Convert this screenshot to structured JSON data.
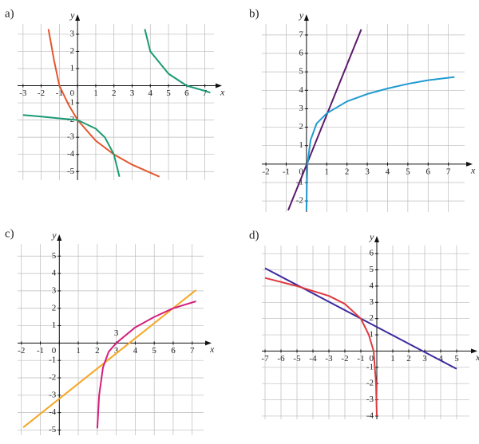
{
  "chart_data": [
    {
      "type": "line",
      "title": "a)",
      "x_label": "x",
      "y_label": "y",
      "xlim": [
        -3.3,
        7.5
      ],
      "ylim": [
        -5.5,
        3.6
      ],
      "xticks": [
        -3,
        -2,
        -1,
        0,
        1,
        2,
        3,
        4,
        5,
        6,
        7
      ],
      "yticks": [
        -5,
        -4,
        -3,
        -2,
        -1,
        1,
        2,
        3
      ],
      "series": [
        {
          "color": "#e4572e",
          "x": [
            -1.6,
            -1.3,
            -1,
            -0.5,
            0,
            1,
            2,
            3,
            4.5
          ],
          "values": [
            3.3,
            1.5,
            0,
            -1.1,
            -2,
            -3.2,
            -4,
            -4.6,
            -5.3
          ]
        },
        {
          "color": "#1a9a74",
          "x": [
            -3,
            -2,
            -1,
            0,
            1,
            1.5,
            2,
            2.3,
            null,
            3.7,
            4,
            5,
            6,
            7,
            7.3
          ],
          "values": [
            -1.7,
            -1.8,
            -1.9,
            -2,
            -2.5,
            -3,
            -4,
            -5.3,
            null,
            3.3,
            2,
            0.7,
            0,
            -0.3,
            -0.4
          ]
        }
      ]
    },
    {
      "type": "line",
      "title": "b)",
      "x_label": "x",
      "y_label": "y",
      "xlim": [
        -2.2,
        7.8
      ],
      "ylim": [
        -2.6,
        7.6
      ],
      "xticks": [
        -2,
        -1,
        0,
        1,
        2,
        3,
        4,
        5,
        6,
        7
      ],
      "yticks": [
        -2,
        -1,
        1,
        2,
        3,
        4,
        5,
        6,
        7
      ],
      "series": [
        {
          "color": "#5b1a6b",
          "x": [
            -0.9,
            2.7
          ],
          "values": [
            -2.5,
            7.3
          ]
        },
        {
          "color": "#1f9bd1",
          "x": [
            0,
            0.02,
            0.05,
            0.2,
            0.5,
            1,
            2,
            3,
            4,
            5,
            6,
            7.3
          ],
          "values": [
            -2.5,
            -1,
            0,
            1.3,
            2.2,
            2.75,
            3.4,
            3.8,
            4.1,
            4.35,
            4.55,
            4.72
          ]
        }
      ]
    },
    {
      "type": "line",
      "title": "c)",
      "x_label": "x",
      "y_label": "y",
      "xlim": [
        -2.2,
        7.6
      ],
      "ylim": [
        -5.3,
        5.7
      ],
      "xticks": [
        -2,
        -1,
        0,
        1,
        2,
        3,
        4,
        5,
        6,
        7
      ],
      "yticks": [
        -5,
        -4,
        -3,
        -2,
        -1,
        1,
        2,
        3,
        4,
        5
      ],
      "annotations": [
        {
          "value": 3,
          "label": "3"
        }
      ],
      "series": [
        {
          "color": "#f5a623",
          "x": [
            -1.9,
            7.2
          ],
          "values": [
            -4.85,
            3.05
          ]
        },
        {
          "color": "#d41f7c",
          "x": [
            2,
            2.1,
            2.3,
            2.6,
            3,
            4,
            5,
            6,
            7.2
          ],
          "values": [
            -4.9,
            -3,
            -1.4,
            -0.5,
            0,
            0.9,
            1.5,
            2,
            2.4
          ]
        }
      ]
    },
    {
      "type": "line",
      "title": "d)",
      "x_label": "x",
      "y_label": "y",
      "xlim": [
        -7.2,
        5.8
      ],
      "ylim": [
        -4.2,
        6.5
      ],
      "xticks": [
        -7,
        -6,
        -5,
        -4,
        -3,
        -2,
        -1,
        0,
        1,
        2,
        3,
        4,
        5
      ],
      "yticks": [
        -4,
        -3,
        -2,
        -1,
        1,
        2,
        3,
        4,
        5,
        6
      ],
      "series": [
        {
          "color": "#3c2a9e",
          "x": [
            -7,
            5
          ],
          "values": [
            5.1,
            -1.1
          ]
        },
        {
          "color": "#e0393e",
          "x": [
            -7,
            -5,
            -3,
            -2,
            -1,
            -0.5,
            -0.2,
            -0.05,
            0
          ],
          "values": [
            4.5,
            4,
            3.4,
            2.9,
            2,
            1,
            0,
            -2,
            -4
          ]
        }
      ]
    }
  ]
}
